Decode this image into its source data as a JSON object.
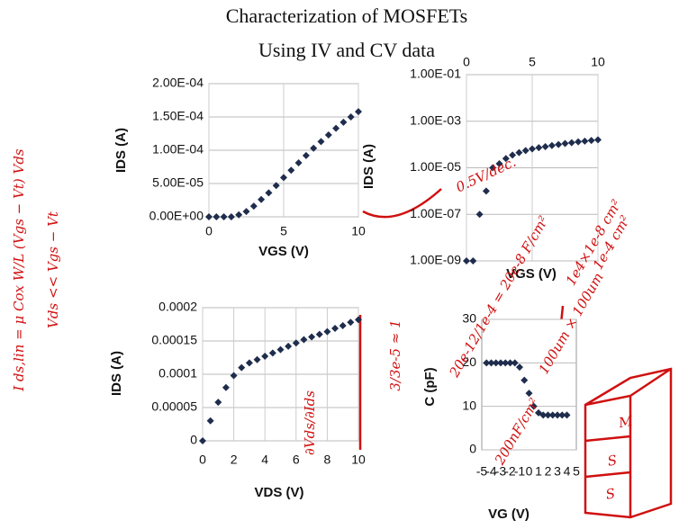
{
  "title": [
    "Characterization of MOSFETs",
    "Using IV and CV data"
  ],
  "chart_data": [
    {
      "type": "scatter",
      "xlabel": "VGS (V)",
      "ylabel": "IDS (A)",
      "color": "#1f2d4d",
      "grid": true,
      "log_y": false,
      "x_axis_top": false,
      "x": [
        0,
        0.5,
        1,
        1.5,
        2,
        2.5,
        3,
        3.5,
        4,
        4.5,
        5,
        5.5,
        6,
        6.5,
        7,
        7.5,
        8,
        8.5,
        9,
        9.5,
        10
      ],
      "values": [
        0,
        0,
        0,
        0,
        3e-06,
        8e-06,
        1.6e-05,
        2.6e-05,
        3.6e-05,
        4.7e-05,
        5.9e-05,
        7e-05,
        8.1e-05,
        9.2e-05,
        0.000103,
        0.000113,
        0.000123,
        0.000133,
        0.000142,
        0.00015,
        0.000158
      ],
      "xlim": [
        0,
        10
      ],
      "xticks": [
        0,
        5,
        10
      ],
      "ylim": [
        0,
        0.0002
      ],
      "yticks": [
        {
          "value": 0,
          "label": "0.00E+00"
        },
        {
          "value": 5e-05,
          "label": "5.00E-05"
        },
        {
          "value": 0.0001,
          "label": "1.00E-04"
        },
        {
          "value": 0.00015,
          "label": "1.50E-04"
        },
        {
          "value": 0.0002,
          "label": "2.00E-04"
        }
      ]
    },
    {
      "type": "scatter",
      "xlabel": "VGS (V)",
      "ylabel": "IDS (A)",
      "color": "#1f2d4d",
      "grid": true,
      "log_y": true,
      "x_axis_top": true,
      "x": [
        0,
        0.5,
        1,
        1.5,
        2,
        2.5,
        3,
        3.5,
        4,
        4.5,
        5,
        5.5,
        6,
        6.5,
        7,
        7.5,
        8,
        8.5,
        9,
        9.5,
        10
      ],
      "values": [
        1e-09,
        1e-09,
        1e-07,
        1e-06,
        1e-05,
        1.5e-05,
        2.5e-05,
        3.5e-05,
        4.5e-05,
        5.5e-05,
        6.5e-05,
        7.3e-05,
        8.1e-05,
        9e-05,
        0.0001,
        0.00011,
        0.00012,
        0.00013,
        0.00014,
        0.00015,
        0.00016
      ],
      "xlim": [
        0,
        10
      ],
      "xticks": [
        0,
        5,
        10
      ],
      "ylim": [
        1e-09,
        0.1
      ],
      "yticks": [
        {
          "value": 1e-09,
          "label": "1.00E-09"
        },
        {
          "value": 1e-07,
          "label": "1.00E-07"
        },
        {
          "value": 1e-05,
          "label": "1.00E-05"
        },
        {
          "value": 0.001,
          "label": "1.00E-03"
        },
        {
          "value": 0.1,
          "label": "1.00E-01"
        }
      ]
    },
    {
      "type": "scatter",
      "xlabel": "VDS (V)",
      "ylabel": "IDS (A)",
      "color": "#1f2d4d",
      "grid": true,
      "log_y": false,
      "x_axis_top": false,
      "x": [
        0,
        0.5,
        1,
        1.5,
        2,
        2.5,
        3,
        3.5,
        4,
        4.5,
        5,
        5.5,
        6,
        6.5,
        7,
        7.5,
        8,
        8.5,
        9,
        9.5,
        10
      ],
      "values": [
        0,
        3e-05,
        5.8e-05,
        8e-05,
        9.8e-05,
        0.00011,
        0.000117,
        0.000122,
        0.000127,
        0.000132,
        0.000137,
        0.000142,
        0.000147,
        0.000152,
        0.000156,
        0.00016,
        0.000164,
        0.000169,
        0.000173,
        0.000178,
        0.000182
      ],
      "xlim": [
        0,
        10
      ],
      "xticks": [
        0,
        2,
        4,
        6,
        8,
        10
      ],
      "ylim": [
        0,
        0.0002
      ],
      "yticks": [
        0,
        5e-05,
        0.0001,
        0.00015,
        0.0002
      ]
    },
    {
      "type": "scatter",
      "xlabel": "VG (V)",
      "ylabel": "C (pF)",
      "color": "#1f2d4d",
      "grid": true,
      "log_y": false,
      "x_axis_top": false,
      "x": [
        -4.5,
        -4,
        -3.5,
        -3,
        -2.5,
        -2,
        -1.5,
        -1,
        -0.5,
        0,
        0.5,
        1,
        1.5,
        2,
        2.5,
        3,
        3.5,
        4
      ],
      "values": [
        20,
        20,
        20,
        20,
        20,
        20,
        20,
        19,
        16,
        13,
        10,
        8.5,
        8,
        8,
        8,
        8,
        8,
        8
      ],
      "xlim": [
        -5,
        5
      ],
      "xticks": [
        -5,
        -4,
        -3,
        -2,
        -1,
        0,
        1,
        2,
        3,
        4,
        5
      ],
      "ylim": [
        0,
        30
      ],
      "yticks": [
        0,
        10,
        20,
        30
      ]
    }
  ],
  "annotations": [
    "I ds,lin = μ Cox W/L (Vgs − Vt) Vds",
    "Vds << Vgs − Vt",
    "0.5V/dec.",
    "3/3e-5 ≈ 1",
    "∂Vds/∂Ids",
    "20e-12/1e-4 = 20e-8 F/cm²",
    "200nF/cm²",
    "1e4×1e-8 cm²",
    "1e-4 cm²",
    "100um × 100um",
    "M",
    "S",
    "S"
  ]
}
